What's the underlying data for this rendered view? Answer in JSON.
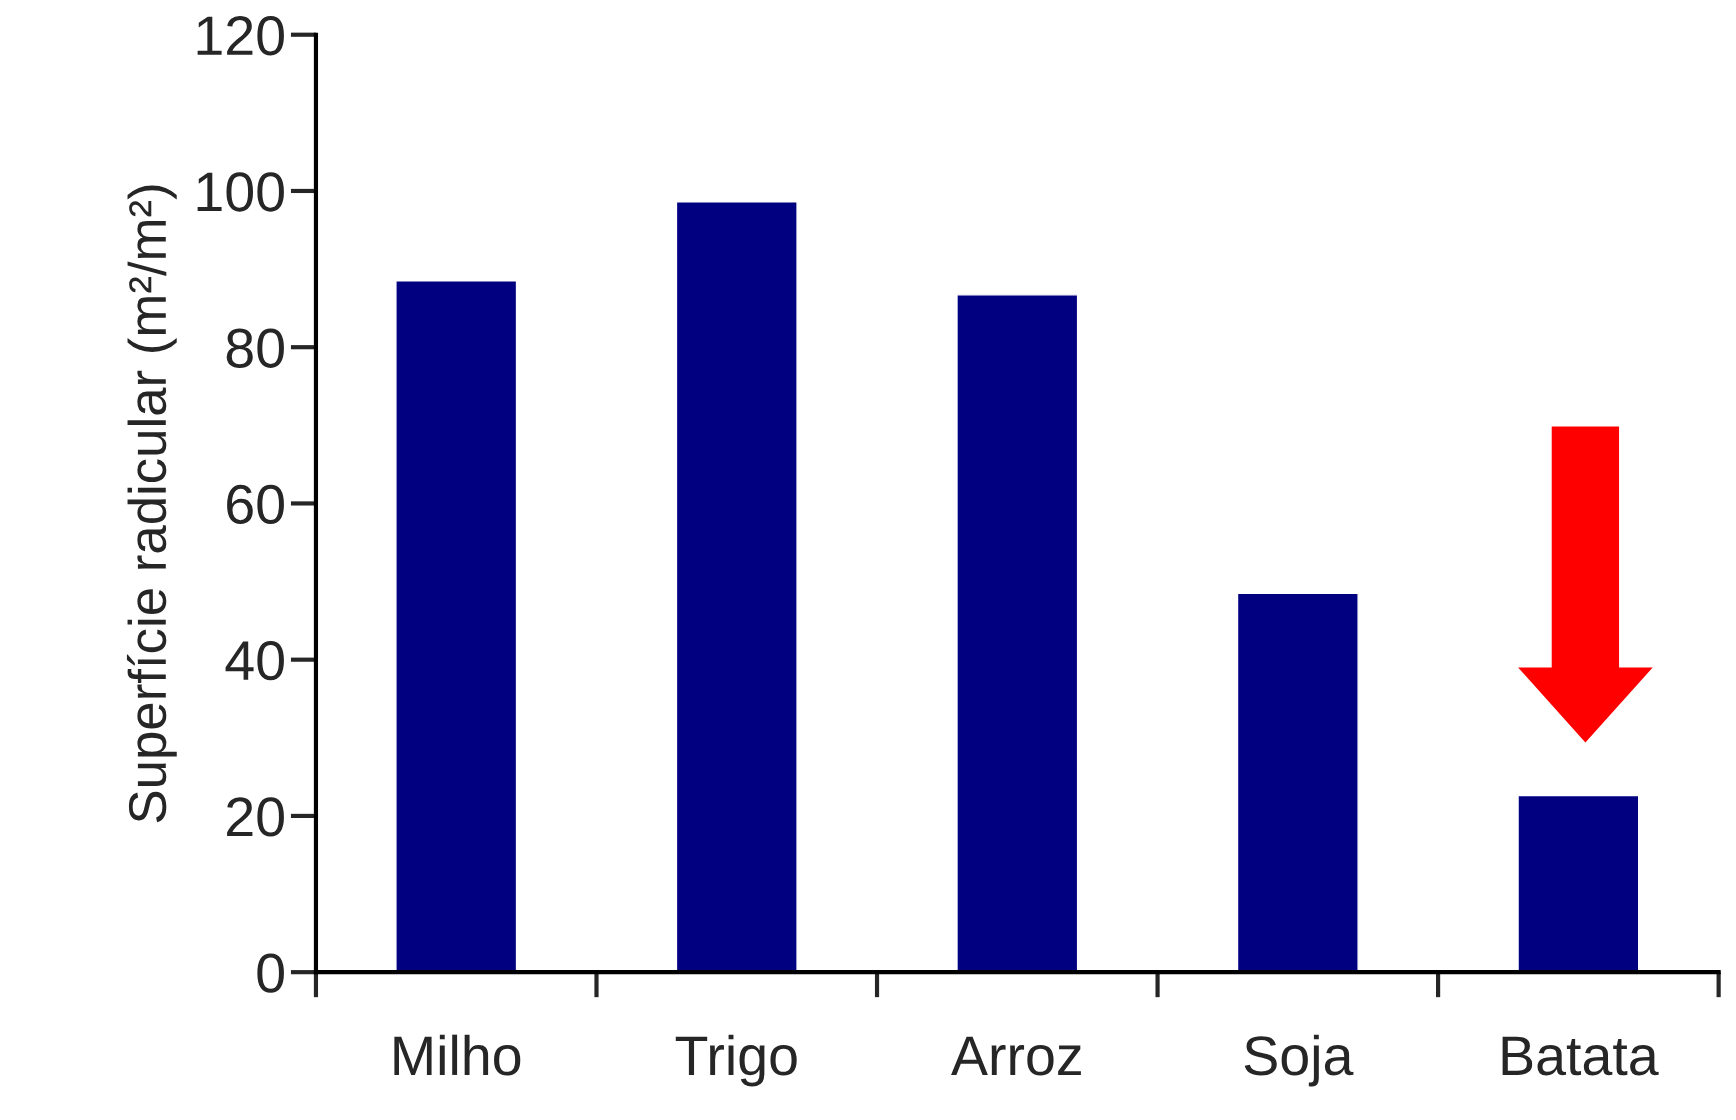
{
  "chart_data": {
    "type": "bar",
    "ylabel": "Superfície radicular (m²/m²)",
    "categories": [
      "Milho",
      "Trigo",
      "Arroz",
      "Soja",
      "Batata"
    ],
    "values": [
      88.5,
      98.6,
      86.7,
      48.5,
      22.6
    ],
    "color": "#000080",
    "ylim": [
      0,
      120
    ],
    "yticks": [
      0,
      20,
      40,
      60,
      80,
      100,
      120
    ],
    "grid": false
  }
}
